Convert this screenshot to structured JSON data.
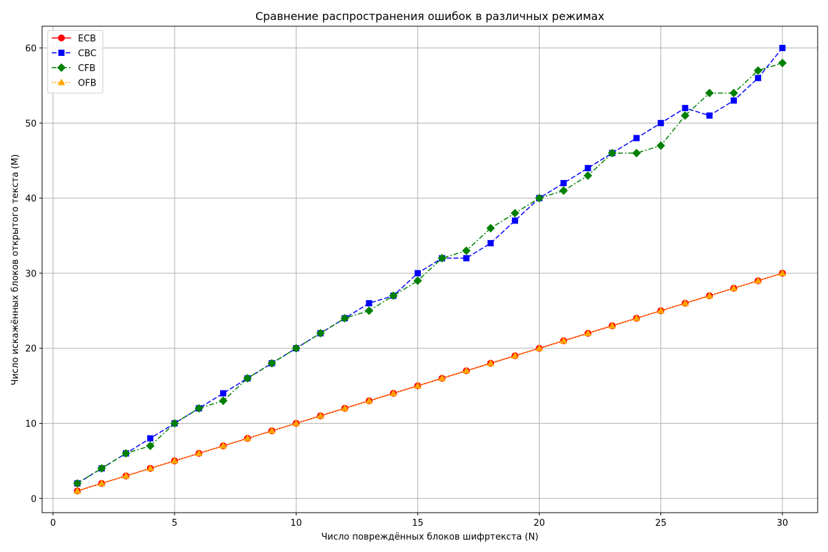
{
  "chart_data": {
    "type": "line",
    "title": "Сравнение распространения ошибок в различных режимах",
    "xlabel": "Число повреждённых блоков шифртекста (N)",
    "ylabel": "Число искажённых блоков открытого текста (M)",
    "xlim": [
      -0.45,
      31.45
    ],
    "ylim": [
      -1.9,
      62.9
    ],
    "xticks": [
      0,
      5,
      10,
      15,
      20,
      25,
      30
    ],
    "yticks": [
      0,
      10,
      20,
      30,
      40,
      50,
      60
    ],
    "grid": true,
    "legend_position": "top-left",
    "x": [
      1,
      2,
      3,
      4,
      5,
      6,
      7,
      8,
      9,
      10,
      11,
      12,
      13,
      14,
      15,
      16,
      17,
      18,
      19,
      20,
      21,
      22,
      23,
      24,
      25,
      26,
      27,
      28,
      29,
      30
    ],
    "series": [
      {
        "name": "ECB",
        "color": "#ff0000",
        "marker": "circle",
        "line_style": "solid",
        "values": [
          1,
          2,
          3,
          4,
          5,
          6,
          7,
          8,
          9,
          10,
          11,
          12,
          13,
          14,
          15,
          16,
          17,
          18,
          19,
          20,
          21,
          22,
          23,
          24,
          25,
          26,
          27,
          28,
          29,
          30
        ]
      },
      {
        "name": "CBC",
        "color": "#0000ff",
        "marker": "square",
        "line_style": "dashed",
        "values": [
          2,
          4,
          6,
          8,
          10,
          12,
          14,
          16,
          18,
          20,
          22,
          24,
          26,
          27,
          30,
          32,
          32,
          34,
          37,
          40,
          42,
          44,
          46,
          48,
          50,
          52,
          51,
          53,
          56,
          60
        ]
      },
      {
        "name": "CFB",
        "color": "#008000",
        "marker": "diamond",
        "line_style": "dashdot",
        "values": [
          2,
          4,
          6,
          7,
          10,
          12,
          13,
          16,
          18,
          20,
          22,
          24,
          25,
          27,
          29,
          32,
          33,
          36,
          38,
          40,
          41,
          43,
          46,
          46,
          47,
          51,
          54,
          54,
          57,
          58
        ]
      },
      {
        "name": "OFB",
        "color": "#ffa500",
        "marker": "triangle",
        "line_style": "dotted",
        "values": [
          1,
          2,
          3,
          4,
          5,
          6,
          7,
          8,
          9,
          10,
          11,
          12,
          13,
          14,
          15,
          16,
          17,
          18,
          19,
          20,
          21,
          22,
          23,
          24,
          25,
          26,
          27,
          28,
          29,
          30
        ]
      }
    ]
  }
}
